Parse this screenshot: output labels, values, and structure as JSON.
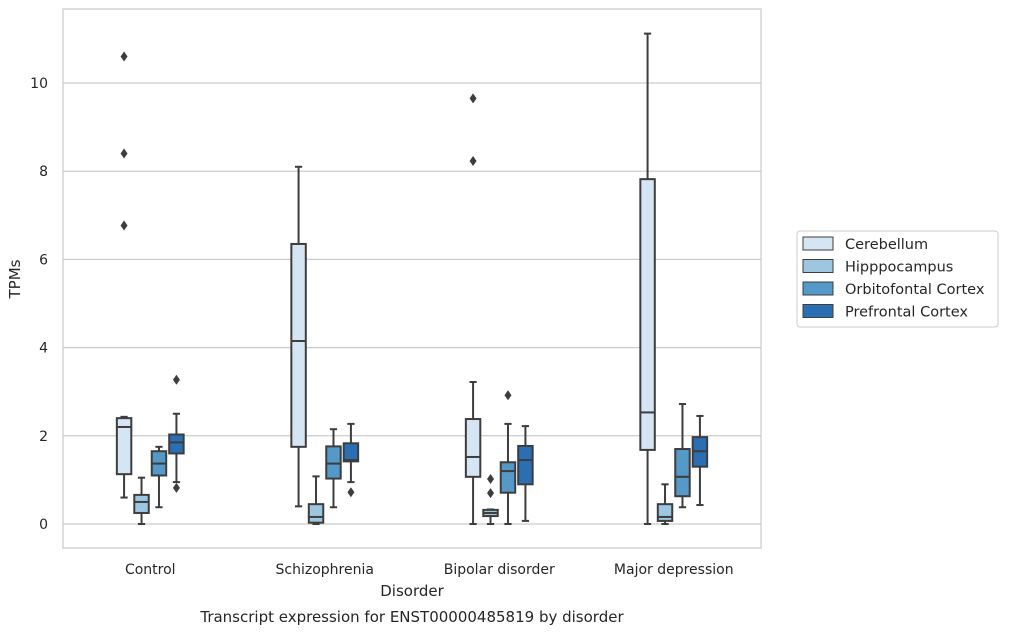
{
  "chart_data": {
    "type": "box",
    "title": "",
    "caption": "Transcript expression for ENST00000485819 by disorder",
    "xlabel": "Disorder",
    "ylabel": "TPMs",
    "ylim": [
      -0.5,
      11.7
    ],
    "yticks": [
      0,
      2,
      4,
      6,
      8,
      10
    ],
    "grid": "horizontal",
    "legend_position": "right",
    "categories": [
      "Control",
      "Schizophrenia",
      "Bipolar disorder",
      "Major depression"
    ],
    "series": [
      {
        "name": "Cerebellum",
        "color": "#d6e5f4",
        "boxes": [
          {
            "whislo": 0.6,
            "q1": 1.13,
            "med": 2.2,
            "q3": 2.4,
            "whishi": 2.43,
            "fliers": [
              6.77,
              8.4,
              10.6
            ]
          },
          {
            "whislo": 0.4,
            "q1": 1.75,
            "med": 4.15,
            "q3": 6.35,
            "whishi": 8.1,
            "fliers": []
          },
          {
            "whislo": 0.0,
            "q1": 1.07,
            "med": 1.52,
            "q3": 2.38,
            "whishi": 3.22,
            "fliers": [
              8.23,
              9.65
            ]
          },
          {
            "whislo": 0.0,
            "q1": 1.68,
            "med": 2.53,
            "q3": 7.82,
            "whishi": 11.12,
            "fliers": []
          }
        ]
      },
      {
        "name": "Hipppocampus",
        "color": "#9dc6e0",
        "boxes": [
          {
            "whislo": 0.0,
            "q1": 0.25,
            "med": 0.5,
            "q3": 0.66,
            "whishi": 1.05,
            "fliers": []
          },
          {
            "whislo": 0.0,
            "q1": 0.03,
            "med": 0.16,
            "q3": 0.45,
            "whishi": 1.08,
            "fliers": []
          },
          {
            "whislo": 0.0,
            "q1": 0.18,
            "med": 0.25,
            "q3": 0.32,
            "whishi": 0.33,
            "fliers": [
              0.7,
              1.02
            ]
          },
          {
            "whislo": 0.0,
            "q1": 0.07,
            "med": 0.16,
            "q3": 0.45,
            "whishi": 0.9,
            "fliers": []
          }
        ]
      },
      {
        "name": "Orbitofontal Cortex",
        "color": "#5599c8",
        "boxes": [
          {
            "whislo": 0.38,
            "q1": 1.1,
            "med": 1.37,
            "q3": 1.65,
            "whishi": 1.75,
            "fliers": []
          },
          {
            "whislo": 0.38,
            "q1": 1.03,
            "med": 1.37,
            "q3": 1.76,
            "whishi": 2.15,
            "fliers": []
          },
          {
            "whislo": 0.0,
            "q1": 0.71,
            "med": 1.2,
            "q3": 1.4,
            "whishi": 2.27,
            "fliers": [
              2.92
            ]
          },
          {
            "whislo": 0.38,
            "q1": 0.63,
            "med": 1.07,
            "q3": 1.7,
            "whishi": 2.72,
            "fliers": []
          }
        ]
      },
      {
        "name": "Prefrontal Cortex",
        "color": "#2a6fb4",
        "boxes": [
          {
            "whislo": 0.95,
            "q1": 1.6,
            "med": 1.85,
            "q3": 2.03,
            "whishi": 2.5,
            "fliers": [
              0.82,
              3.27
            ]
          },
          {
            "whislo": 0.95,
            "q1": 1.42,
            "med": 1.45,
            "q3": 1.83,
            "whishi": 2.27,
            "fliers": [
              0.72
            ]
          },
          {
            "whislo": 0.07,
            "q1": 0.9,
            "med": 1.45,
            "q3": 1.77,
            "whishi": 2.22,
            "fliers": []
          },
          {
            "whislo": 0.43,
            "q1": 1.3,
            "med": 1.65,
            "q3": 1.97,
            "whishi": 2.45,
            "fliers": []
          }
        ]
      }
    ]
  }
}
